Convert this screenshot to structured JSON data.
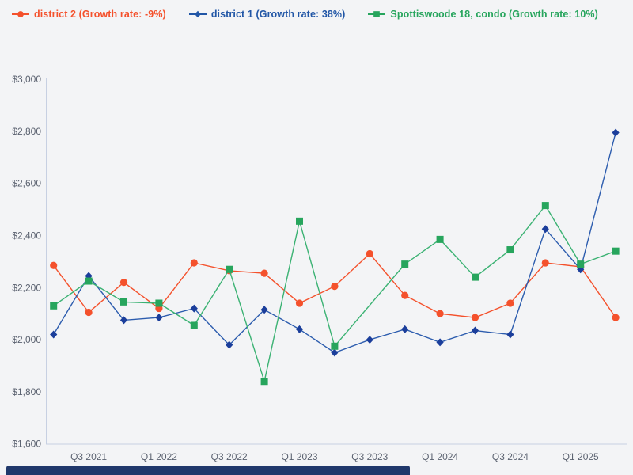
{
  "page": {
    "background": "#f3f4f6",
    "axis_color": "#c7d0e2",
    "tick_text_color": "#5b6270"
  },
  "legend": {
    "items": [
      {
        "label": "district 2 (Growth rate: -9%)",
        "marker": "circle",
        "color": "#f4512c"
      },
      {
        "label": "district 1 (Growth rate: 38%)",
        "marker": "diamond",
        "color": "#2156a6"
      },
      {
        "label": "Spottiswoode 18, condo (Growth rate: 10%)",
        "marker": "square",
        "color": "#27a55d"
      }
    ]
  },
  "chart_data": {
    "type": "line",
    "title": "",
    "xlabel": "",
    "ylabel": "",
    "ylim": [
      1600,
      3000
    ],
    "grid": false,
    "legend_position": "top",
    "x": [
      "Q2 2021",
      "Q3 2021",
      "Q4 2021",
      "Q1 2022",
      "Q2 2022",
      "Q3 2022",
      "Q4 2022",
      "Q1 2023",
      "Q2 2023",
      "Q3 2023",
      "Q4 2023",
      "Q1 2024",
      "Q2 2024",
      "Q3 2024",
      "Q4 2024",
      "Q1 2025",
      "Q2 2025"
    ],
    "x_tick_indices": [
      1,
      3,
      5,
      7,
      9,
      11,
      13,
      15
    ],
    "x_tick_labels": [
      "Q3 2021",
      "Q1 2022",
      "Q3 2022",
      "Q1 2023",
      "Q3 2023",
      "Q1 2024",
      "Q3 2024",
      "Q1 2025"
    ],
    "y_ticks": [
      {
        "value": 3000,
        "label": "$3,000"
      },
      {
        "value": 2800,
        "label": "$2,800"
      },
      {
        "value": 2600,
        "label": "$2,600"
      },
      {
        "value": 2400,
        "label": "$2,400"
      },
      {
        "value": 2200,
        "label": "$2,200"
      },
      {
        "value": 2000,
        "label": "$2,000"
      },
      {
        "value": 1800,
        "label": "$1,800"
      },
      {
        "value": 1600,
        "label": "$1,600"
      }
    ],
    "series": [
      {
        "name": "district 2 (Growth rate: -9%)",
        "marker": "circle",
        "line_color": "#f4512c",
        "marker_color": "#f4512c",
        "values": [
          2285,
          2105,
          2220,
          2120,
          2295,
          2265,
          2255,
          2140,
          2205,
          2330,
          2170,
          2100,
          2085,
          2140,
          2295,
          2280,
          2085
        ]
      },
      {
        "name": "district 1 (Growth rate: 38%)",
        "marker": "diamond",
        "line_color": "#2c5cae",
        "marker_color": "#1b3e9b",
        "values": [
          2020,
          2245,
          2075,
          2085,
          2120,
          1980,
          2115,
          2040,
          1950,
          2000,
          2040,
          1990,
          2035,
          2020,
          2425,
          2270,
          2795
        ]
      },
      {
        "name": "Spottiswoode 18, condo (Growth rate: 10%)",
        "marker": "square",
        "line_color": "#3bb273",
        "marker_color": "#27a55d",
        "values": [
          2130,
          2225,
          2145,
          2140,
          2055,
          2270,
          1840,
          2455,
          1975,
          null,
          2290,
          2385,
          2240,
          2345,
          2515,
          2290,
          2340
        ]
      }
    ]
  },
  "footer_bar": {
    "color": "#20386b"
  }
}
